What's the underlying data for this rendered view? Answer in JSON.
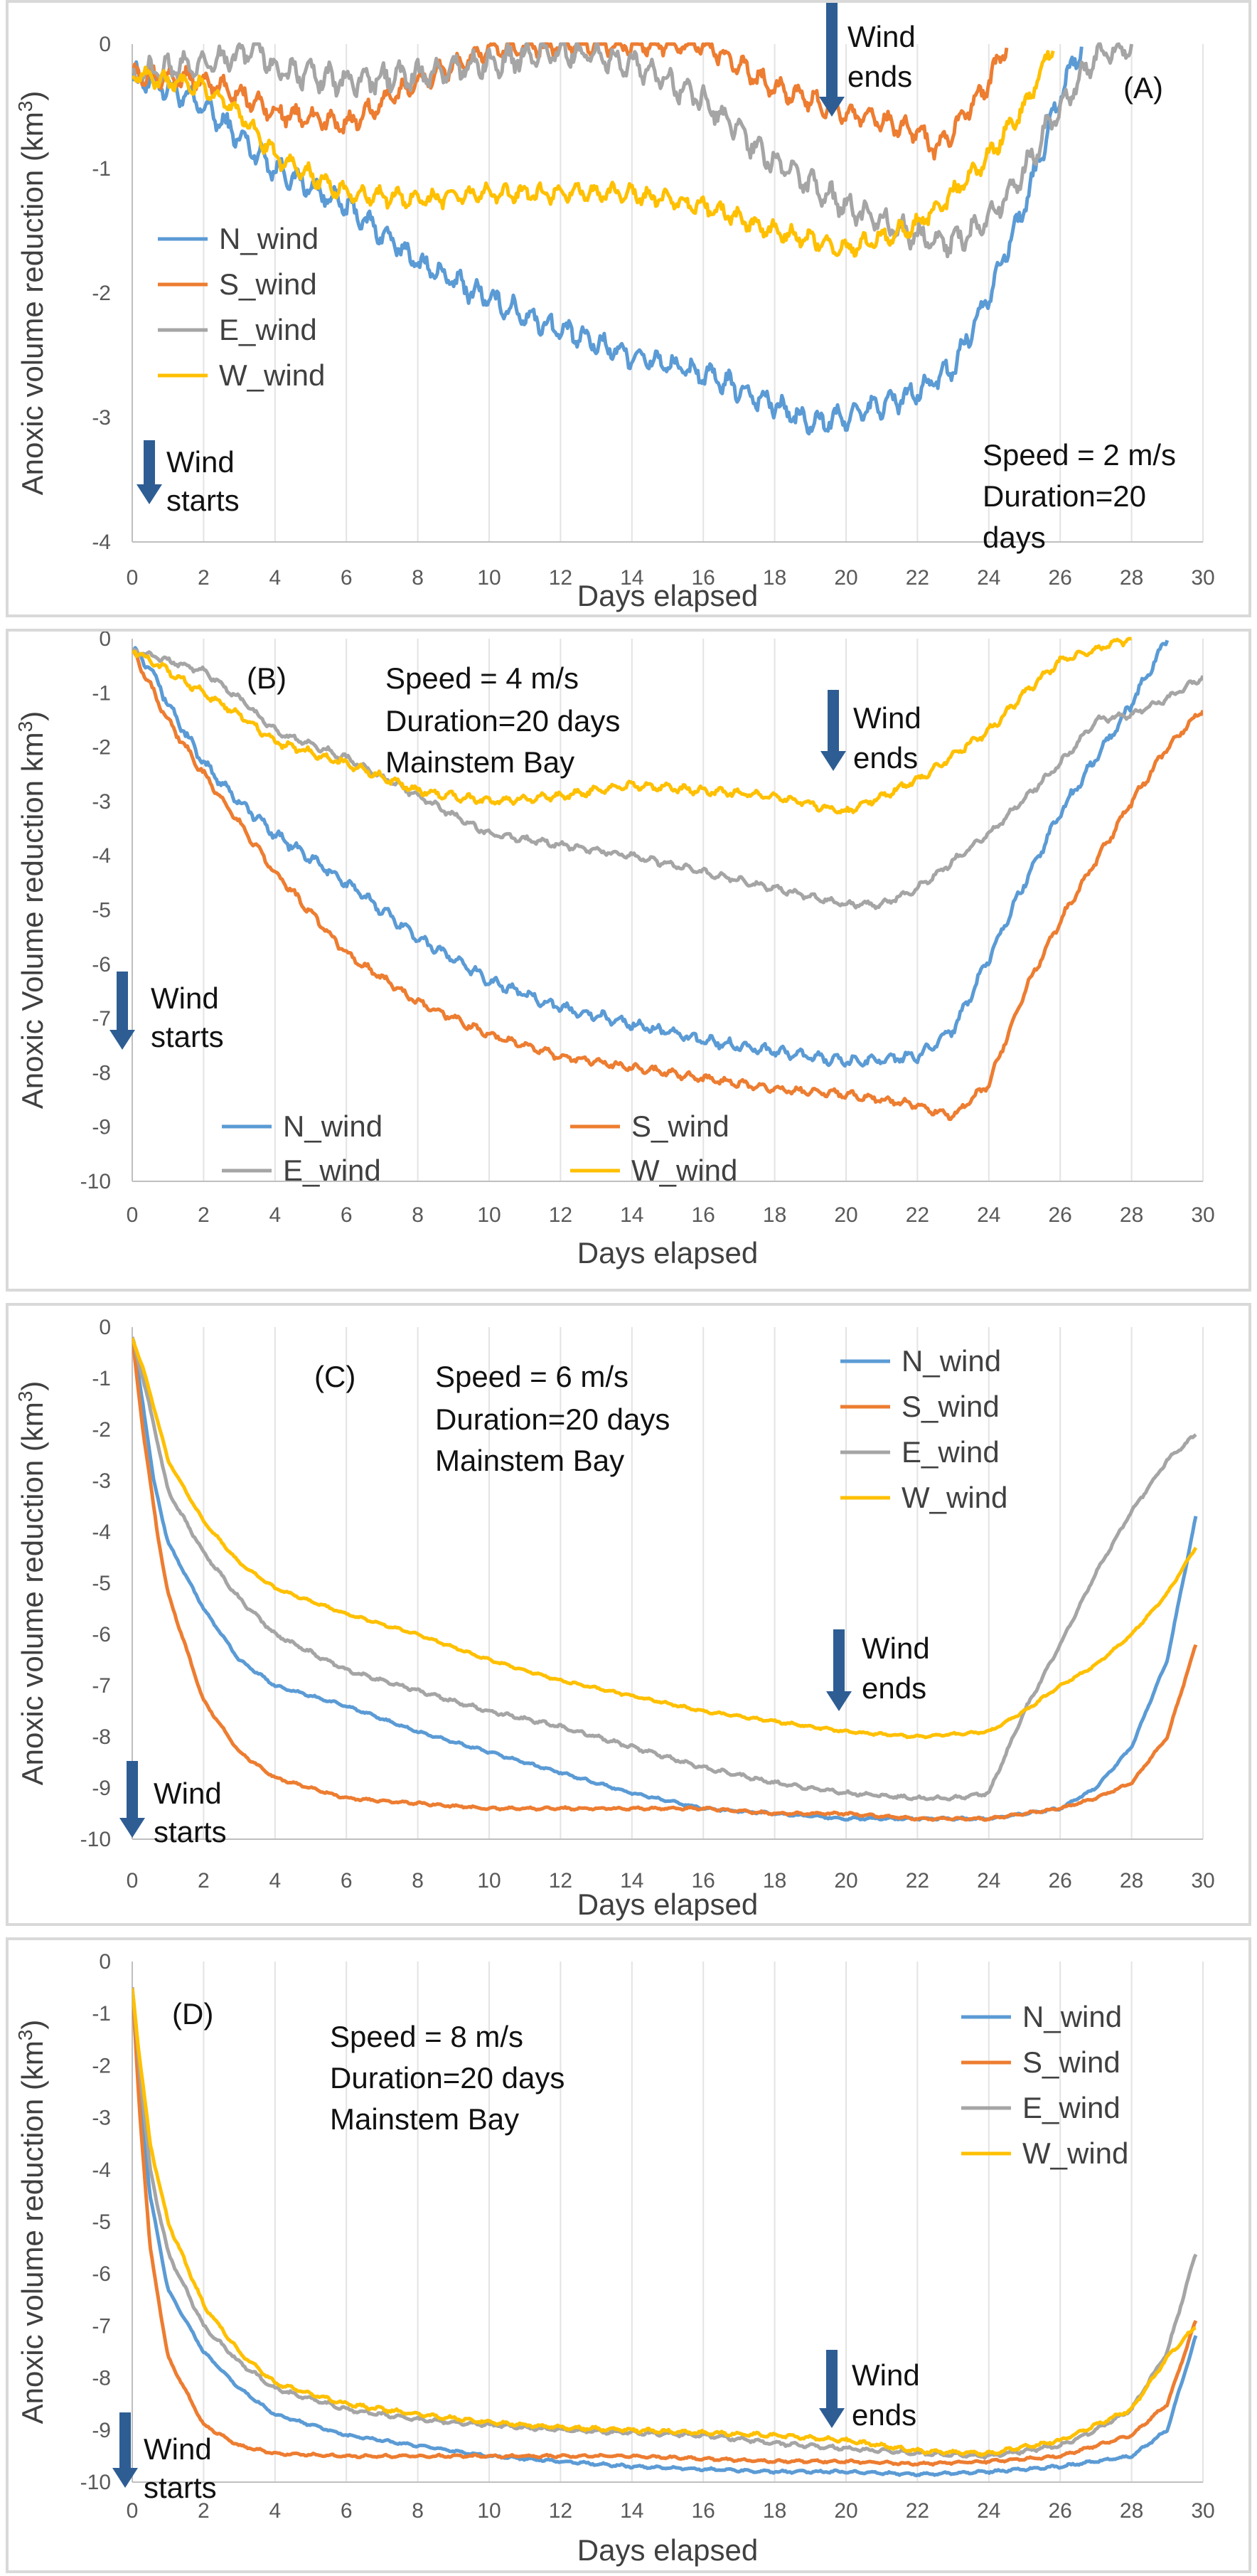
{
  "colors": {
    "N_wind": "#5b9bd5",
    "S_wind": "#ed7d31",
    "E_wind": "#a5a5a5",
    "W_wind": "#ffc000",
    "arrow": "#2e5d94",
    "grid": "#e3e3e3",
    "axis": "#bfbfbf"
  },
  "chart_data": [
    {
      "type": "line",
      "panel": "(A)",
      "xlabel": "Days elapsed",
      "ylabel": "Anoxic volume reduction (km³)",
      "xlim": [
        0,
        30
      ],
      "ylim": [
        -4,
        0
      ],
      "xticks": [
        0,
        2,
        4,
        6,
        8,
        10,
        12,
        14,
        16,
        18,
        20,
        22,
        24,
        26,
        28,
        30
      ],
      "yticks": [
        0,
        -1,
        -2,
        -3,
        -4
      ],
      "grid": "vertical",
      "legend_placement": "left",
      "legend": [
        "N_wind",
        "S_wind",
        "E_wind",
        "W_wind"
      ],
      "annotations": {
        "speed": "Speed = 2 m/s",
        "duration": "Duration=20",
        "duration2": "days",
        "wind_starts_1": "Wind",
        "wind_starts_2": "starts",
        "wind_ends_1": "Wind",
        "wind_ends_2": "ends"
      },
      "series": [
        {
          "name": "N_wind",
          "noise": 0.08,
          "x": [
            0,
            1,
            2,
            3,
            4,
            5,
            6,
            8,
            10,
            12,
            14,
            16,
            18,
            19,
            20,
            22,
            23,
            24,
            25,
            26,
            26.6
          ],
          "y": [
            -0.25,
            -0.35,
            -0.5,
            -0.75,
            -1.0,
            -1.15,
            -1.3,
            -1.75,
            -2.05,
            -2.3,
            -2.5,
            -2.65,
            -2.9,
            -3.05,
            -3.0,
            -2.8,
            -2.6,
            -2.0,
            -1.3,
            -0.4,
            0
          ]
        },
        {
          "name": "S_wind",
          "noise": 0.07,
          "x": [
            0,
            1,
            2,
            3,
            4,
            6,
            8,
            10,
            12,
            14,
            16,
            18,
            20,
            22,
            22.5,
            23,
            24,
            24.5
          ],
          "y": [
            -0.25,
            -0.25,
            -0.3,
            -0.4,
            -0.55,
            -0.65,
            -0.3,
            -0.05,
            0,
            0,
            0,
            -0.35,
            -0.55,
            -0.7,
            -0.85,
            -0.7,
            -0.3,
            0
          ]
        },
        {
          "name": "E_wind",
          "noise": 0.09,
          "x": [
            0,
            1,
            2,
            3,
            3.5,
            4,
            6,
            8,
            10,
            12,
            14,
            16,
            18,
            20,
            22,
            23,
            24,
            25,
            26,
            27,
            28
          ],
          "y": [
            -0.25,
            -0.2,
            -0.15,
            -0.1,
            0,
            -0.2,
            -0.3,
            -0.25,
            -0.15,
            -0.05,
            -0.15,
            -0.45,
            -0.95,
            -1.3,
            -1.55,
            -1.6,
            -1.4,
            -1.0,
            -0.5,
            -0.1,
            0
          ]
        },
        {
          "name": "W_wind",
          "noise": 0.06,
          "x": [
            0,
            1,
            2,
            3,
            4,
            6,
            8,
            10,
            12,
            14,
            16,
            18,
            20,
            22,
            23,
            24,
            25,
            25.8
          ],
          "y": [
            -0.25,
            -0.3,
            -0.35,
            -0.55,
            -0.9,
            -1.2,
            -1.25,
            -1.2,
            -1.2,
            -1.2,
            -1.3,
            -1.5,
            -1.65,
            -1.45,
            -1.2,
            -0.9,
            -0.5,
            0
          ]
        }
      ]
    },
    {
      "type": "line",
      "panel": "(B)",
      "xlabel": "Days elapsed",
      "ylabel": "Anoxic Volume reduction km³)",
      "xlim": [
        0,
        30
      ],
      "ylim": [
        -10,
        0
      ],
      "xticks": [
        0,
        2,
        4,
        6,
        8,
        10,
        12,
        14,
        16,
        18,
        20,
        22,
        24,
        26,
        28,
        30
      ],
      "yticks": [
        0,
        -1,
        -2,
        -3,
        -4,
        -5,
        -6,
        -7,
        -8,
        -9,
        -10
      ],
      "grid": "vertical",
      "legend_placement": "bottom-left",
      "legend": [
        "N_wind",
        "S_wind",
        "E_wind",
        "W_wind"
      ],
      "annotations": {
        "speed": "Speed = 4 m/s",
        "duration": "Duration=20 days",
        "location": "Mainstem Bay",
        "wind_starts_1": "Wind",
        "wind_starts_2": "starts",
        "wind_ends_1": "Wind",
        "wind_ends_2": "ends"
      },
      "series": [
        {
          "name": "N_wind",
          "noise": 0.08,
          "x": [
            0,
            0.5,
            1,
            2,
            3,
            4,
            6,
            8,
            10,
            12,
            14,
            16,
            18,
            20,
            22,
            23,
            24,
            25,
            26,
            27,
            28,
            29
          ],
          "y": [
            -0.2,
            -0.5,
            -1.2,
            -2.3,
            -3.0,
            -3.6,
            -4.5,
            -5.5,
            -6.3,
            -6.8,
            -7.1,
            -7.4,
            -7.6,
            -7.8,
            -7.7,
            -7.2,
            -5.9,
            -4.5,
            -3.2,
            -2.2,
            -1.2,
            0
          ]
        },
        {
          "name": "S_wind",
          "noise": 0.06,
          "x": [
            0,
            1,
            2,
            3,
            4,
            6,
            8,
            10,
            12,
            14,
            16,
            18,
            20,
            22,
            23,
            24,
            25,
            26,
            27,
            28,
            29,
            30
          ],
          "y": [
            -0.2,
            -1.5,
            -2.5,
            -3.4,
            -4.3,
            -5.8,
            -6.7,
            -7.3,
            -7.7,
            -7.9,
            -8.1,
            -8.3,
            -8.4,
            -8.6,
            -8.8,
            -8.2,
            -6.5,
            -5.2,
            -4.1,
            -3.0,
            -2.0,
            -1.3
          ]
        },
        {
          "name": "E_wind",
          "noise": 0.05,
          "x": [
            0,
            1,
            2,
            3,
            4,
            6,
            8,
            10,
            12,
            14,
            16,
            18,
            20,
            21,
            22,
            24,
            26,
            27,
            28,
            29,
            30
          ],
          "y": [
            -0.2,
            -0.4,
            -0.6,
            -1.1,
            -1.7,
            -2.2,
            -2.9,
            -3.6,
            -3.8,
            -4.0,
            -4.3,
            -4.6,
            -4.9,
            -4.9,
            -4.6,
            -3.6,
            -2.3,
            -1.5,
            -1.4,
            -1.1,
            -0.7
          ]
        },
        {
          "name": "W_wind",
          "noise": 0.06,
          "x": [
            0,
            1,
            2,
            3,
            4,
            6,
            8,
            10,
            12,
            14,
            16,
            18,
            20,
            22,
            24,
            25,
            26,
            27,
            28
          ],
          "y": [
            -0.2,
            -0.6,
            -1.0,
            -1.4,
            -1.9,
            -2.3,
            -2.8,
            -3.0,
            -2.9,
            -2.7,
            -2.8,
            -2.9,
            -3.2,
            -2.6,
            -1.7,
            -1.0,
            -0.4,
            -0.2,
            0
          ]
        }
      ]
    },
    {
      "type": "line",
      "panel": "(C)",
      "xlabel": "Days elapsed",
      "ylabel": "Anoxic volume reduction (km³)",
      "xlim": [
        0,
        30
      ],
      "ylim": [
        -10,
        0
      ],
      "xticks": [
        0,
        2,
        4,
        6,
        8,
        10,
        12,
        14,
        16,
        18,
        20,
        22,
        24,
        26,
        28,
        30
      ],
      "yticks": [
        0,
        -1,
        -2,
        -3,
        -4,
        -5,
        -6,
        -7,
        -8,
        -9,
        -10
      ],
      "grid": "vertical",
      "legend_placement": "top-right",
      "legend": [
        "N_wind",
        "S_wind",
        "E_wind",
        "W_wind"
      ],
      "annotations": {
        "speed": "Speed = 6 m/s",
        "duration": "Duration=20 days",
        "location": "Mainstem Bay",
        "wind_starts_1": "Wind",
        "wind_starts_2": "starts",
        "wind_ends_1": "Wind",
        "wind_ends_2": "ends"
      },
      "series": [
        {
          "name": "N_wind",
          "noise": 0.02,
          "x": [
            0,
            0.3,
            0.6,
            1,
            2,
            3,
            4,
            6,
            8,
            10,
            12,
            14,
            16,
            18,
            20,
            22,
            23,
            24,
            25,
            26,
            27,
            28,
            29,
            29.8
          ],
          "y": [
            -0.2,
            -1.5,
            -3.0,
            -4.2,
            -5.5,
            -6.5,
            -7.0,
            -7.4,
            -7.9,
            -8.3,
            -8.7,
            -9.1,
            -9.4,
            -9.5,
            -9.6,
            -9.6,
            -9.6,
            -9.6,
            -9.5,
            -9.4,
            -9.0,
            -8.2,
            -6.5,
            -3.7
          ]
        },
        {
          "name": "S_wind",
          "noise": 0.02,
          "x": [
            0,
            0.3,
            0.7,
            1,
            2,
            3,
            4,
            6,
            8,
            10,
            12,
            14,
            16,
            18,
            20,
            22,
            24,
            25,
            26,
            27,
            28,
            29,
            29.8
          ],
          "y": [
            -0.2,
            -2.0,
            -4.0,
            -5.2,
            -7.3,
            -8.3,
            -8.8,
            -9.2,
            -9.3,
            -9.4,
            -9.4,
            -9.4,
            -9.4,
            -9.5,
            -9.5,
            -9.6,
            -9.6,
            -9.5,
            -9.4,
            -9.2,
            -8.9,
            -8.0,
            -6.2
          ]
        },
        {
          "name": "E_wind",
          "noise": 0.03,
          "x": [
            0,
            0.3,
            0.7,
            1,
            2,
            3,
            4,
            6,
            8,
            10,
            12,
            14,
            16,
            18,
            20,
            22,
            23,
            24,
            25,
            26,
            27,
            28,
            29,
            29.8
          ],
          "y": [
            -0.2,
            -1.0,
            -2.2,
            -3.2,
            -4.4,
            -5.3,
            -6.0,
            -6.7,
            -7.1,
            -7.5,
            -7.8,
            -8.2,
            -8.6,
            -8.9,
            -9.1,
            -9.2,
            -9.2,
            -9.1,
            -7.5,
            -6.2,
            -4.8,
            -3.6,
            -2.6,
            -2.1
          ]
        },
        {
          "name": "W_wind",
          "noise": 0.02,
          "x": [
            0,
            0.3,
            0.7,
            1,
            2,
            3,
            4,
            6,
            8,
            10,
            12,
            14,
            16,
            18,
            20,
            22,
            24,
            25,
            26,
            27,
            28,
            29,
            29.8
          ],
          "y": [
            -0.2,
            -0.8,
            -1.8,
            -2.6,
            -3.8,
            -4.6,
            -5.1,
            -5.6,
            -6.0,
            -6.5,
            -6.9,
            -7.2,
            -7.5,
            -7.7,
            -7.9,
            -8.0,
            -7.9,
            -7.5,
            -7.0,
            -6.6,
            -6.0,
            -5.2,
            -4.3
          ]
        }
      ]
    },
    {
      "type": "line",
      "panel": "(D)",
      "xlabel": "Days elapsed",
      "ylabel": "Anoxic volume reduction (km³)",
      "xlim": [
        0,
        30
      ],
      "ylim": [
        -10,
        0
      ],
      "xticks": [
        0,
        2,
        4,
        6,
        8,
        10,
        12,
        14,
        16,
        18,
        20,
        22,
        24,
        26,
        28,
        30
      ],
      "yticks": [
        0,
        -1,
        -2,
        -3,
        -4,
        -5,
        -6,
        -7,
        -8,
        -9,
        -10
      ],
      "grid": "vertical",
      "legend_placement": "top-right",
      "legend": [
        "N_wind",
        "S_wind",
        "E_wind",
        "W_wind"
      ],
      "annotations": {
        "speed": "Speed = 8 m/s",
        "duration": "Duration=20 days",
        "location": "Mainstem Bay",
        "wind_starts_1": "Wind",
        "wind_starts_2": "starts",
        "wind_ends_1": "Wind",
        "wind_ends_2": "ends"
      },
      "series": [
        {
          "name": "N_wind",
          "noise": 0.02,
          "x": [
            0,
            0.2,
            0.5,
            1,
            2,
            3,
            4,
            6,
            8,
            10,
            12,
            14,
            16,
            18,
            20,
            22,
            24,
            26,
            28,
            29,
            29.8
          ],
          "y": [
            -0.5,
            -2.5,
            -4.5,
            -6.3,
            -7.5,
            -8.2,
            -8.7,
            -9.1,
            -9.3,
            -9.5,
            -9.6,
            -9.7,
            -9.75,
            -9.8,
            -9.8,
            -9.85,
            -9.8,
            -9.7,
            -9.5,
            -9.0,
            -7.2
          ]
        },
        {
          "name": "S_wind",
          "noise": 0.02,
          "x": [
            0,
            0.2,
            0.5,
            1,
            2,
            3,
            4,
            6,
            8,
            10,
            12,
            14,
            16,
            18,
            20,
            22,
            24,
            26,
            28,
            29,
            29.8
          ],
          "y": [
            -0.5,
            -2.8,
            -5.5,
            -7.6,
            -8.9,
            -9.3,
            -9.45,
            -9.5,
            -9.5,
            -9.5,
            -9.5,
            -9.5,
            -9.55,
            -9.6,
            -9.6,
            -9.65,
            -9.6,
            -9.5,
            -9.1,
            -8.5,
            -6.9
          ]
        },
        {
          "name": "E_wind",
          "noise": 0.03,
          "x": [
            0,
            0.2,
            0.5,
            1,
            2,
            3,
            4,
            6,
            8,
            10,
            12,
            14,
            16,
            18,
            20,
            22,
            24,
            26,
            27,
            28,
            29,
            29.8
          ],
          "y": [
            -0.5,
            -2.0,
            -4.0,
            -5.6,
            -7.0,
            -7.7,
            -8.2,
            -8.6,
            -8.8,
            -8.9,
            -9.0,
            -9.05,
            -9.1,
            -9.25,
            -9.35,
            -9.45,
            -9.5,
            -9.3,
            -9.0,
            -8.6,
            -7.5,
            -5.6
          ]
        },
        {
          "name": "W_wind",
          "noise": 0.03,
          "x": [
            0,
            0.2,
            0.5,
            1,
            2,
            3,
            4,
            6,
            8,
            10,
            12,
            14,
            16,
            18,
            20,
            22,
            24,
            26,
            27,
            28,
            29,
            29.8
          ],
          "y": [
            -0.5,
            -1.8,
            -3.5,
            -5.0,
            -6.6,
            -7.5,
            -8.1,
            -8.5,
            -8.7,
            -8.85,
            -8.95,
            -9.0,
            -9.05,
            -9.1,
            -9.2,
            -9.4,
            -9.45,
            -9.2,
            -8.9,
            -8.6,
            -7.6,
            -7.0
          ]
        }
      ]
    }
  ]
}
